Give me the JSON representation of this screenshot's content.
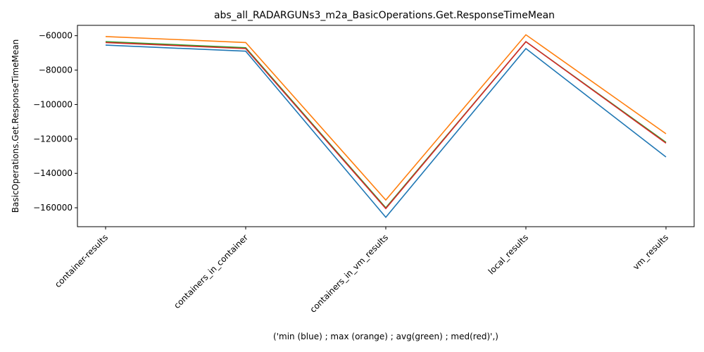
{
  "chart_data": {
    "type": "line",
    "title": "abs_all_RADARGUNs3_m2a_BasicOperations.Get.ResponseTimeMean",
    "xlabel": "('min (blue) ; max (orange) ; avg(green) ; med(red)',)",
    "ylabel": "BasicOperations.Get.ResponseTimeMean",
    "categories": [
      "container-results",
      "containers_in_container",
      "containers_in_vm_results",
      "local_results",
      "vm_results"
    ],
    "yticks": [
      -60000,
      -80000,
      -100000,
      -120000,
      -140000,
      -160000
    ],
    "ylim": [
      -171000,
      -54000
    ],
    "grid": false,
    "series": [
      {
        "color": "#1f77b4",
        "values": [
          -65500,
          -69000,
          -165500,
          -67500,
          -130500
        ]
      },
      {
        "color": "#ff7f0e",
        "values": [
          -60500,
          -64000,
          -155500,
          -59500,
          -117000
        ]
      },
      {
        "color": "#2ca02c",
        "values": [
          -63500,
          -67000,
          -160000,
          -63500,
          -122000
        ]
      },
      {
        "color": "#d62728",
        "values": [
          -64000,
          -67500,
          -160500,
          -63500,
          -122500
        ]
      }
    ]
  }
}
